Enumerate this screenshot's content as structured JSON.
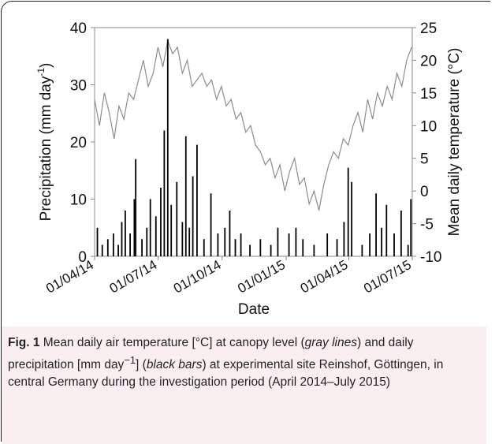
{
  "chart_data": {
    "type": "bar-line",
    "x_label": "Date",
    "y_label": "Precipitation (mm day",
    "y_label_sup": "-1",
    "y_label_end": ")",
    "y2_label": "Mean daily temperature (°C)",
    "xlim": [
      "2014-04-01",
      "2015-07-01"
    ],
    "xticks": [
      {
        "value": "2014-04-01",
        "label": "01/04/14"
      },
      {
        "value": "2014-07-01",
        "label": "01/07/14"
      },
      {
        "value": "2014-10-01",
        "label": "01/10/14"
      },
      {
        "value": "2015-01-01",
        "label": "01/01/15"
      },
      {
        "value": "2015-04-01",
        "label": "01/04/15"
      },
      {
        "value": "2015-07-01",
        "label": "01/07/15"
      }
    ],
    "ylim": [
      0,
      40
    ],
    "yticks": [
      0,
      10,
      20,
      30,
      40
    ],
    "y2lim": [
      -10,
      25
    ],
    "y2ticks": [
      -10,
      -5,
      0,
      5,
      10,
      15,
      20,
      25
    ],
    "series": [
      {
        "kind": "line",
        "axis": "y2",
        "color": "#8c8c8c",
        "x": [
          "2014-04-01",
          "2014-04-08",
          "2014-04-15",
          "2014-04-22",
          "2014-04-29",
          "2014-05-06",
          "2014-05-13",
          "2014-05-20",
          "2014-05-27",
          "2014-06-03",
          "2014-06-10",
          "2014-06-17",
          "2014-06-24",
          "2014-07-01",
          "2014-07-08",
          "2014-07-15",
          "2014-07-22",
          "2014-07-29",
          "2014-08-05",
          "2014-08-12",
          "2014-08-19",
          "2014-08-26",
          "2014-09-02",
          "2014-09-09",
          "2014-09-16",
          "2014-09-23",
          "2014-09-30",
          "2014-10-07",
          "2014-10-14",
          "2014-10-21",
          "2014-10-28",
          "2014-11-04",
          "2014-11-11",
          "2014-11-18",
          "2014-11-25",
          "2014-12-02",
          "2014-12-09",
          "2014-12-16",
          "2014-12-23",
          "2014-12-30",
          "2015-01-06",
          "2015-01-13",
          "2015-01-20",
          "2015-01-27",
          "2015-02-03",
          "2015-02-10",
          "2015-02-17",
          "2015-02-24",
          "2015-03-03",
          "2015-03-10",
          "2015-03-17",
          "2015-03-24",
          "2015-03-31",
          "2015-04-07",
          "2015-04-14",
          "2015-04-21",
          "2015-04-28",
          "2015-05-05",
          "2015-05-12",
          "2015-05-19",
          "2015-05-26",
          "2015-06-02",
          "2015-06-09",
          "2015-06-16",
          "2015-06-23",
          "2015-06-30"
        ],
        "values": [
          14,
          10,
          15,
          12,
          8,
          13,
          11,
          15,
          14,
          17,
          20,
          16,
          18,
          22,
          19,
          23,
          21,
          22,
          18,
          20,
          16,
          17,
          18,
          16,
          17,
          14,
          16,
          13,
          14,
          11,
          12,
          9,
          10,
          7,
          6,
          4,
          5,
          2,
          4,
          0,
          3,
          5,
          1,
          2,
          -2,
          0,
          -3,
          1,
          4,
          6,
          5,
          8,
          7,
          10,
          12,
          9,
          14,
          11,
          15,
          13,
          16,
          14,
          18,
          16,
          20,
          22
        ]
      },
      {
        "kind": "bar",
        "axis": "y",
        "color": "#000000",
        "x": [
          "2014-04-05",
          "2014-04-12",
          "2014-04-20",
          "2014-04-28",
          "2014-05-05",
          "2014-05-10",
          "2014-05-15",
          "2014-05-22",
          "2014-05-28",
          "2014-05-30",
          "2014-06-08",
          "2014-06-15",
          "2014-06-20",
          "2014-06-28",
          "2014-07-05",
          "2014-07-10",
          "2014-07-15",
          "2014-07-20",
          "2014-07-28",
          "2014-08-05",
          "2014-08-10",
          "2014-08-15",
          "2014-08-20",
          "2014-08-26",
          "2014-09-05",
          "2014-09-15",
          "2014-09-25",
          "2014-10-05",
          "2014-10-12",
          "2014-10-20",
          "2014-10-28",
          "2014-11-10",
          "2014-11-25",
          "2014-12-10",
          "2014-12-20",
          "2015-01-05",
          "2015-01-15",
          "2015-01-25",
          "2015-02-10",
          "2015-03-01",
          "2015-03-15",
          "2015-03-25",
          "2015-03-31",
          "2015-04-05",
          "2015-04-20",
          "2015-05-01",
          "2015-05-10",
          "2015-05-18",
          "2015-05-25",
          "2015-06-05",
          "2015-06-15",
          "2015-06-25",
          "2015-06-29"
        ],
        "values": [
          5,
          2,
          3,
          4,
          2,
          6,
          8,
          4,
          10,
          17,
          3,
          5,
          10,
          7,
          12,
          22,
          38,
          9,
          13,
          6,
          21,
          5,
          14,
          19.5,
          3,
          11,
          4,
          5,
          8,
          3,
          4,
          2,
          3,
          2,
          5,
          4,
          5,
          3,
          2,
          4,
          3,
          6,
          15.5,
          13,
          2,
          4,
          11,
          5,
          9,
          4,
          8,
          2,
          10
        ]
      }
    ]
  },
  "caption": {
    "label": "Fig. 1",
    "parts": [
      " Mean daily air temperature [°C] at canopy level (",
      "gray lines",
      ") and daily precipitation [mm day",
      "−1",
      "] (",
      "black bars",
      ") at experimental site Reinshof, Göttingen, in central Germany during the investigation period (April 2014–July 2015)"
    ]
  }
}
